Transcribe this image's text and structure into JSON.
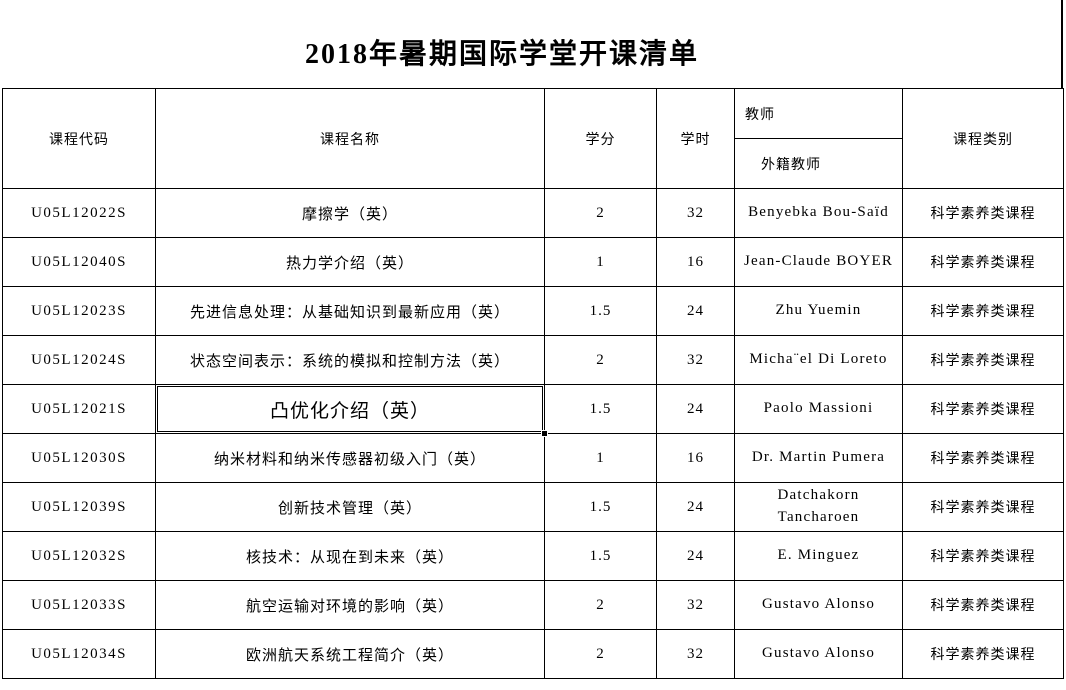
{
  "title": "2018年暑期国际学堂开课清单",
  "colors": {
    "background": "#ffffff",
    "text": "#000000",
    "border": "#000000"
  },
  "table": {
    "headers": {
      "code": "课程代码",
      "name": "课程名称",
      "credit": "学分",
      "hours": "学时",
      "teacher": "教师",
      "foreign_teacher": "外籍教师",
      "category": "课程类别"
    },
    "rows": [
      {
        "code": "U05L12022S",
        "name": "摩擦学（英）",
        "credit": "2",
        "hours": "32",
        "teacher": "Benyebka Bou-Saïd",
        "category": "科学素养类课程"
      },
      {
        "code": "U05L12040S",
        "name": "热力学介绍（英）",
        "credit": "1",
        "hours": "16",
        "teacher": "Jean-Claude BOYER",
        "category": "科学素养类课程"
      },
      {
        "code": "U05L12023S",
        "name": "先进信息处理：从基础知识到最新应用（英）",
        "credit": "1.5",
        "hours": "24",
        "teacher": "Zhu Yuemin",
        "category": "科学素养类课程"
      },
      {
        "code": "U05L12024S",
        "name": "状态空间表示：系统的模拟和控制方法（英）",
        "credit": "2",
        "hours": "32",
        "teacher": "Micha¨el Di Loreto",
        "category": "科学素养类课程"
      },
      {
        "code": "U05L12021S",
        "name": "凸优化介绍（英）",
        "credit": "1.5",
        "hours": "24",
        "teacher": "Paolo Massioni",
        "category": "科学素养类课程"
      },
      {
        "code": "U05L12030S",
        "name": "纳米材料和纳米传感器初级入门（英）",
        "credit": "1",
        "hours": "16",
        "teacher": "Dr. Martin Pumera",
        "category": "科学素养类课程"
      },
      {
        "code": "U05L12039S",
        "name": "创新技术管理（英）",
        "credit": "1.5",
        "hours": "24",
        "teacher": "Datchakorn Tancharoen",
        "category": "科学素养类课程"
      },
      {
        "code": "U05L12032S",
        "name": "核技术：从现在到未来（英）",
        "credit": "1.5",
        "hours": "24",
        "teacher": "E. Minguez",
        "category": "科学素养类课程"
      },
      {
        "code": "U05L12033S",
        "name": "航空运输对环境的影响（英）",
        "credit": "2",
        "hours": "32",
        "teacher": "Gustavo Alonso",
        "category": "科学素养类课程"
      },
      {
        "code": "U05L12034S",
        "name": "欧洲航天系统工程简介（英）",
        "credit": "2",
        "hours": "32",
        "teacher": "Gustavo Alonso",
        "category": "科学素养类课程"
      }
    ]
  },
  "selection": {
    "row_index": 4,
    "column": "name"
  }
}
